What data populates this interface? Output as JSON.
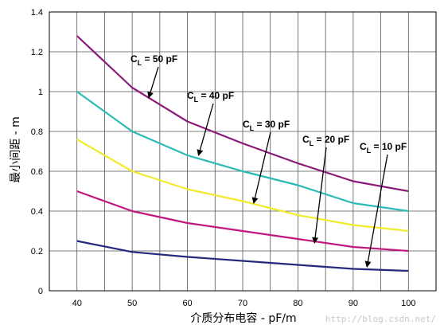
{
  "chart_data": {
    "type": "line",
    "xlabel": "介质分布电容 - pF/m",
    "ylabel": "最小间距 - m",
    "xlim": [
      35,
      105
    ],
    "ylim": [
      0,
      1.4
    ],
    "x_ticks": [
      "40",
      "50",
      "60",
      "70",
      "80",
      "90",
      "100"
    ],
    "y_ticks": [
      "0",
      "0.2",
      "0.4",
      "0.6",
      "0.8",
      "1",
      "1.2",
      "1.4"
    ],
    "grid": true,
    "x": [
      40,
      50,
      60,
      70,
      80,
      90,
      100
    ],
    "series": [
      {
        "name": "C_L = 50 pF",
        "color": "#8b1a7a",
        "values": [
          1.28,
          1.02,
          0.85,
          0.74,
          0.64,
          0.55,
          0.5
        ]
      },
      {
        "name": "C_L = 40 pF",
        "color": "#2bbab5",
        "values": [
          1.0,
          0.8,
          0.68,
          0.6,
          0.53,
          0.44,
          0.4
        ]
      },
      {
        "name": "C_L = 30 pF",
        "color": "#f2ea2a",
        "values": [
          0.76,
          0.6,
          0.51,
          0.45,
          0.38,
          0.33,
          0.3
        ]
      },
      {
        "name": "C_L = 20 pF",
        "color": "#c0187f",
        "values": [
          0.5,
          0.4,
          0.34,
          0.3,
          0.26,
          0.22,
          0.2
        ]
      },
      {
        "name": "C_L = 10 pF",
        "color": "#25287c",
        "values": [
          0.25,
          0.195,
          0.17,
          0.15,
          0.13,
          0.11,
          0.1
        ]
      }
    ],
    "annotations": [
      {
        "prefix": "C",
        "sub": "L",
        "suffix": " = 50 pF",
        "target": [
          53,
          0.97
        ]
      },
      {
        "prefix": "C",
        "sub": "L",
        "suffix": " = 40 pF",
        "target": [
          62,
          0.68
        ]
      },
      {
        "prefix": "C",
        "sub": "L",
        "suffix": " = 30 pF",
        "target": [
          72,
          0.44
        ]
      },
      {
        "prefix": "C",
        "sub": "L",
        "suffix": " = 20 pF",
        "target": [
          83,
          0.24
        ]
      },
      {
        "prefix": "C",
        "sub": "L",
        "suffix": " = 10 pF",
        "target": [
          92.5,
          0.12
        ]
      }
    ]
  },
  "watermark": "http://blog.csdn.net/"
}
